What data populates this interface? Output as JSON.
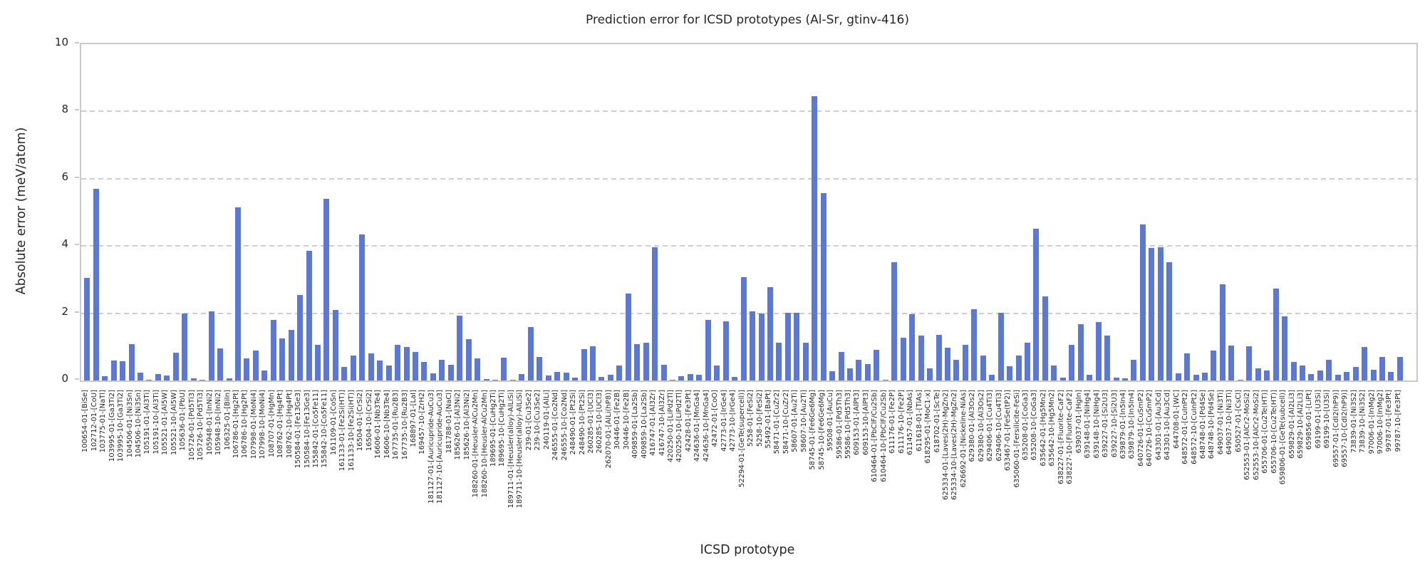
{
  "chart_data": {
    "type": "bar",
    "title": "Prediction error for ICSD prototypes (Al-Sr, gtinv-416)",
    "xlabel": "ICSD prototype",
    "ylabel": "Absolute error (meV/atom)",
    "ylim": [
      0,
      10
    ],
    "yticks": [
      0,
      2,
      4,
      6,
      8,
      10
    ],
    "grid": "dashed horizontal at 2,4,6,8",
    "legend": "none",
    "bar_color": "#5b78d6",
    "categories": [
      "100654-01-[BiSe]",
      "102712-01-[CoU]",
      "103775-01-[NaTl]",
      "103995-01-[Ga3Ti2]",
      "103995-10-[Ga3Ti2]",
      "104506-01-[Ni3Sn]",
      "104506-10-[Ni3Sn]",
      "105191-01-[Al3Ti]",
      "105191-10-[Al3Ti]",
      "105521-01-[Al5W]",
      "105521-10-[Al5W]",
      "105636-01-[PbU]",
      "105726-01-[Pd5Ti3]",
      "105726-10-[Pd5Ti3]",
      "105948-01-[InNi2]",
      "105948-10-[InNi2]",
      "106325-01-[BiIn]",
      "106786-01-[Hg2Pt]",
      "106786-10-[Hg2Pt]",
      "107998-01-[MoNi4]",
      "107998-10-[MoNi4]",
      "108707-01-[HgMn]",
      "108762-01-[Hg4Pt]",
      "108762-10-[Hg4Pt]",
      "150584-01-[Fe13Ge3]",
      "150584-10-[Fe13Ge3]",
      "155842-01-[Co5Fe11]",
      "155842-10-[Co5Fe11]",
      "161109-01-[CoSn]",
      "161133-01-[Fe2Si(HT)]",
      "161133-10-[Fe2Si(HT)]",
      "16504-01-[CrSi2]",
      "16504-10-[CrSi2]",
      "16606-01-[Nb3Te4]",
      "16606-10-[Nb3Te4]",
      "167735-01-[Ru2B3]",
      "167735-10-[Ru2B3]",
      "168897-01-[LaI]",
      "169457-10-[ZrH2]",
      "181127-01-[Auricupride-AuCu3]",
      "181127-10-[Auricupride-AuCu3]",
      "181788-01-[NaCl]",
      "185626-01-[Al3Ni2]",
      "185626-10-[Al3Ni2]",
      "188260-01-[Heusler-AlCu2Mn]",
      "188260-10-[Heusler-AlCu2Mn]",
      "189695-01-[CuHg2Ti]",
      "189695-10-[CuHg2Ti]",
      "189711-01-[Heusler(alloy)-AlLiSi]",
      "189711-10-[Heusler(alloy)-AlLiSi]",
      "239-01-[Cu3Se2]",
      "239-10-[Cu3Se2]",
      "240119-01-[AlLi]",
      "246555-01-[Co2Nd]",
      "246555-10-[Co2Nd]",
      "248490-01-[Pt2Si]",
      "248490-10-[Pt2Si]",
      "260285-01-[UCl3]",
      "260285-10-[UCl3]",
      "262070-01-[AlLi(hP8)]",
      "30446-01-[Fe2B]",
      "30446-10-[Fe2B]",
      "409859-01-[La2Sb]",
      "409859-10-[La2Sb]",
      "416747-01-[Al3Zr]",
      "416747-10-[Al3Zr]",
      "420250-01-[LiPd2Tl]",
      "420250-10-[LiPd2Tl]",
      "42428-01-[Fe3Pt]",
      "424636-01-[MnGa4]",
      "424636-10-[MnGa4]",
      "42472-01-[CoO]",
      "42773-01-[IrGe4]",
      "42773-10-[IrGe4]",
      "52294-01-[GeTe(supercell)]",
      "5258-01-[FeSi2]",
      "5258-10-[FeSi2]",
      "55492-01-[BaPt]",
      "58471-01-[CuZr2]",
      "58471-10-[CuZr2]",
      "58607-01-[Au2Ti]",
      "58607-10-[Au2Ti]",
      "58745-01-[Fe6Ge6Mg]",
      "58745-10-[Fe6Ge6Mg]",
      "59508-01-[AuCu]",
      "59586-01-[Pd5Th3]",
      "59586-10-[Pd5Th3]",
      "609153-01-[AlPt3]",
      "609153-10-[AlPt3]",
      "610464-01-[PbClF/Cu2Sb]",
      "610464-10-[PbClF/Cu2Sb]",
      "611176-01-[Fe2P]",
      "611176-10-[Fe2P]",
      "611457-01-[NbAs]",
      "611618-01-[TiAs]",
      "618295-01-[MoC1-x]",
      "618702-01-[ScTe]",
      "625334-01-[Laves(2H)-MgZn2]",
      "625334-10-[Laves(2H)-MgZn2]",
      "626692-01-[Nickeline-NiAs]",
      "629380-01-[Al3Os2]",
      "629380-10-[Al3Os2]",
      "629406-01-[Cu4Ti3]",
      "629406-10-[Cu4Ti3]",
      "633467-01-[FeSe(tP2)]",
      "635060-01-[Fersilicite-FeSi]",
      "635208-01-[CoGa3]",
      "635208-10-[CoGa3]",
      "635642-01-[Hg5Mn2]",
      "635642-10-[Hg5Mn2]",
      "638227-01-[Fluorite-CaF2]",
      "638227-10-[Fluorite-CaF2]",
      "639037-01-[HgIn]",
      "639148-01-[NiHg4]",
      "639148-10-[NiHg4]",
      "639227-01-[Si2U3]",
      "639227-10-[Si2U3]",
      "639879-01-[In5In4]",
      "639879-10-[In5In4]",
      "640726-01-[CuSmP2]",
      "640726-10-[CuSmP2]",
      "643301-01-[Au3Cd]",
      "643301-10-[Au3Cd]",
      "644708-01-[WC]",
      "648572-01-[CuInPt2]",
      "648572-10-[CuInPt2]",
      "648748-01-[Pd4Se]",
      "648748-10-[Pd4Se]",
      "649037-01-[Ni3Ti]",
      "649037-10-[Ni3Ti]",
      "650527-01-[CsCl]",
      "652553-01-[AlCr2-MoSi2]",
      "652553-10-[AlCr2-MoSi2]",
      "655706-01-[Cu2Te(HT)]",
      "655706-10-[Cu2Te(HT)]",
      "659806-01-[GeTe(subcell)]",
      "659829-01-[Al2Li3]",
      "659829-10-[Al2Li3]",
      "659856-01-[LiPt]",
      "69199-01-[U3Si]",
      "69199-10-[U3Si]",
      "69557-01-[CdI2(hP9)]",
      "69557-10-[CdI2(hP9)]",
      "73839-01-[Ni3S2]",
      "73839-10-[Ni3S2]",
      "97006-01-[InMg2]",
      "97006-10-[InMg2]",
      "99787-01-[Fe3Pt]",
      "99787-10-[Fe3Pt]"
    ],
    "values": [
      3.05,
      5.7,
      0.13,
      0.6,
      0.58,
      1.07,
      0.24,
      0.02,
      0.2,
      0.14,
      0.83,
      2.0,
      0.06,
      0.03,
      2.05,
      0.95,
      0.06,
      5.15,
      0.65,
      0.9,
      0.3,
      1.8,
      1.25,
      1.5,
      2.55,
      3.85,
      1.05,
      5.4,
      2.1,
      0.4,
      0.75,
      4.35,
      0.8,
      0.6,
      0.45,
      1.05,
      1.0,
      0.85,
      0.55,
      0.21,
      0.61,
      0.47,
      1.92,
      1.22,
      0.66,
      0.04,
      0.03,
      0.67,
      0.02,
      0.2,
      1.58,
      0.69,
      0.14,
      0.26,
      0.23,
      0.09,
      0.94,
      1.02,
      0.11,
      0.18,
      0.45,
      2.59,
      1.08,
      1.13,
      3.97,
      0.46,
      0.03,
      0.12,
      0.2,
      0.16,
      1.8,
      0.45,
      1.75,
      0.1,
      3.08,
      2.05,
      2.0,
      2.77,
      1.12,
      2.01,
      2.01,
      1.12,
      8.45,
      5.57,
      0.28,
      0.85,
      0.37,
      0.62,
      0.49,
      0.92,
      0.03,
      3.51,
      1.27,
      1.98,
      1.33,
      0.37,
      1.36,
      0.98,
      0.62,
      1.06,
      2.11,
      0.74,
      0.16,
      2.01,
      0.42,
      0.74,
      1.12,
      4.51,
      2.49,
      0.45,
      0.08,
      1.05,
      1.68,
      0.16,
      1.73,
      1.33,
      0.08,
      0.06,
      0.61,
      4.65,
      3.94,
      3.96,
      3.52,
      0.21,
      0.81,
      0.16,
      0.23,
      0.9,
      2.86,
      1.04,
      0.03,
      1.01,
      0.35,
      0.3,
      2.74,
      1.91,
      0.55,
      0.45,
      0.2,
      0.3,
      0.61,
      0.17,
      0.25,
      0.4,
      1.0,
      0.31,
      0.7,
      0.25,
      0.7
    ]
  }
}
